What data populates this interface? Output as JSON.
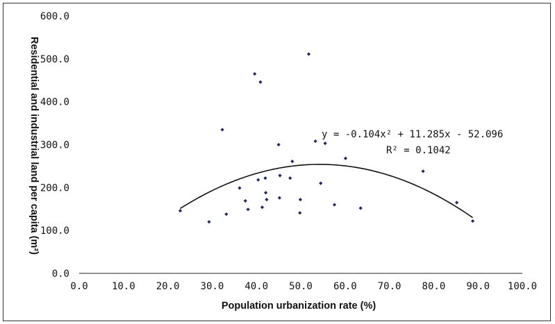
{
  "chart_data": {
    "type": "scatter",
    "xlabel": "Population urbanization rate (%)",
    "ylabel": "Residential and industrial land per capita (m²)",
    "xlim": [
      0,
      100
    ],
    "ylim": [
      0,
      600
    ],
    "x_ticks": [
      "0.0",
      "10.0",
      "20.0",
      "30.0",
      "40.0",
      "50.0",
      "60.0",
      "70.0",
      "80.0",
      "90.0",
      "100.0"
    ],
    "y_ticks": [
      "0.0",
      "100.0",
      "200.0",
      "300.0",
      "400.0",
      "500.0",
      "600.0"
    ],
    "grid": false,
    "legend": "none",
    "marker_color": "#1f2a5a",
    "series": [
      {
        "points": [
          [
            22.8,
            146
          ],
          [
            29.3,
            120
          ],
          [
            32.3,
            335
          ],
          [
            33.2,
            138
          ],
          [
            36.2,
            199
          ],
          [
            37.5,
            169
          ],
          [
            38.1,
            149
          ],
          [
            39.6,
            465
          ],
          [
            40.4,
            218
          ],
          [
            40.9,
            446
          ],
          [
            41.3,
            154
          ],
          [
            42.0,
            222
          ],
          [
            42.1,
            188
          ],
          [
            42.3,
            172
          ],
          [
            45.0,
            300
          ],
          [
            45.2,
            176
          ],
          [
            45.3,
            228
          ],
          [
            47.6,
            222
          ],
          [
            48.1,
            261
          ],
          [
            49.8,
            141
          ],
          [
            49.9,
            172
          ],
          [
            51.8,
            511
          ],
          [
            53.3,
            308
          ],
          [
            54.5,
            210
          ],
          [
            55.5,
            303
          ],
          [
            57.6,
            160
          ],
          [
            60.1,
            268
          ],
          [
            63.5,
            152
          ],
          [
            77.6,
            238
          ],
          [
            85.2,
            165
          ],
          [
            88.8,
            122
          ]
        ]
      }
    ],
    "trendline": {
      "type": "polynomial-2",
      "coefficients": [
        -0.104,
        11.285,
        -52.096
      ],
      "x_range": [
        22.8,
        88.8
      ],
      "equation_label": "y = -0.104x² + 11.285x - 52.096",
      "r2_label": "R² = 0.1042"
    }
  }
}
